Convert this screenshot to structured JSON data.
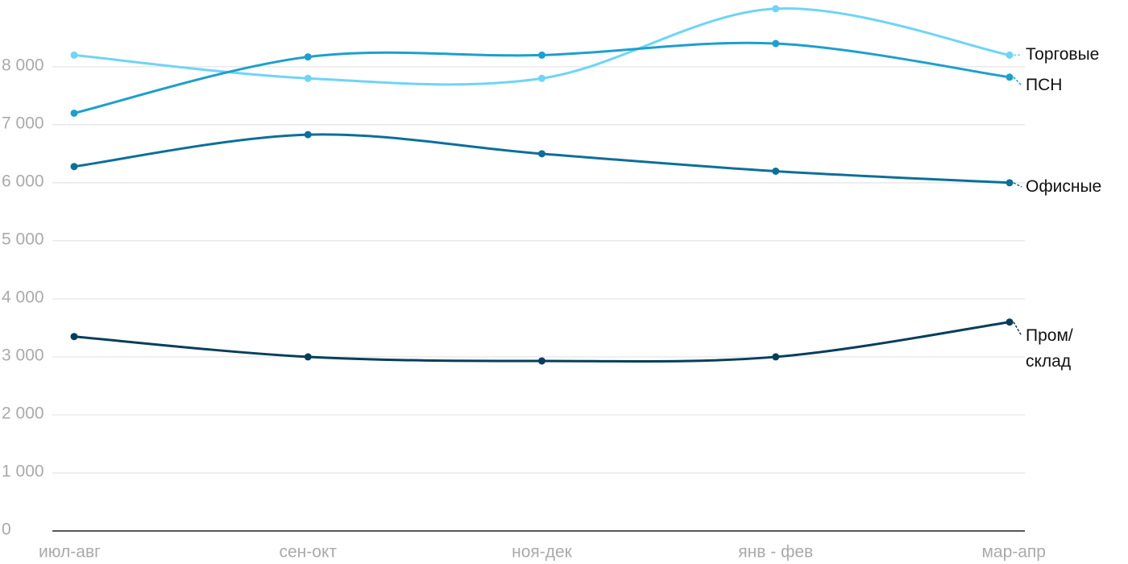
{
  "chart_data": {
    "type": "line",
    "categories": [
      "июл-авг",
      "сен-окт",
      "ноя-дек",
      "янв - фев",
      "мар-апр"
    ],
    "ylim": [
      0,
      9150
    ],
    "yticks": [
      0,
      {
        "value": 1000,
        "label": "1 000"
      },
      {
        "value": 2000,
        "label": "2 000"
      },
      {
        "value": 3000,
        "label": "3 000"
      },
      {
        "value": 4000,
        "label": "4 000"
      },
      {
        "value": 5000,
        "label": "5 000"
      },
      {
        "value": 6000,
        "label": "6 000"
      },
      {
        "value": 7000,
        "label": "7 000"
      },
      {
        "value": 8000,
        "label": "8 000"
      }
    ],
    "grid": true,
    "series": [
      {
        "name": "Торговые",
        "color": "#6fd4f7",
        "values": [
          8200,
          7800,
          7800,
          9000,
          8200
        ]
      },
      {
        "name": "ПСН",
        "color": "#1e9fcd",
        "values": [
          7200,
          8170,
          8200,
          8400,
          7820
        ]
      },
      {
        "name": "Офисные",
        "color": "#0c6f99",
        "values": [
          6280,
          6830,
          6500,
          6200,
          6000
        ]
      },
      {
        "name": "Пром/\nсклад",
        "color": "#053e5c",
        "values": [
          3350,
          3000,
          2930,
          3000,
          3600
        ]
      }
    ]
  }
}
